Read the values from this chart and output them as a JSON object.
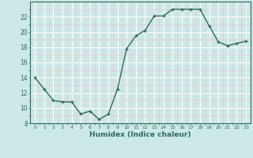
{
  "x": [
    0,
    1,
    2,
    3,
    4,
    5,
    6,
    7,
    8,
    9,
    10,
    11,
    12,
    13,
    14,
    15,
    16,
    17,
    18,
    19,
    20,
    21,
    22,
    23
  ],
  "y": [
    14,
    12.5,
    11,
    10.8,
    10.8,
    9.2,
    9.6,
    8.5,
    9.2,
    12.5,
    17.8,
    19.5,
    20.2,
    22.1,
    22.1,
    23.0,
    23.0,
    23.0,
    23.0,
    20.8,
    18.7,
    18.2,
    18.5,
    18.8
  ],
  "xlabel": "Humidex (Indice chaleur)",
  "xlim": [
    -0.5,
    23.5
  ],
  "ylim": [
    8,
    24
  ],
  "yticks": [
    8,
    10,
    12,
    14,
    16,
    18,
    20,
    22
  ],
  "xticks": [
    0,
    1,
    2,
    3,
    4,
    5,
    6,
    7,
    8,
    9,
    10,
    11,
    12,
    13,
    14,
    15,
    16,
    17,
    18,
    19,
    20,
    21,
    22,
    23
  ],
  "line_color": "#2d6b5e",
  "marker": "+",
  "bg_color": "#cde8e8",
  "grid_major_color": "#ffffff",
  "grid_minor_color": "#e8c8c8"
}
